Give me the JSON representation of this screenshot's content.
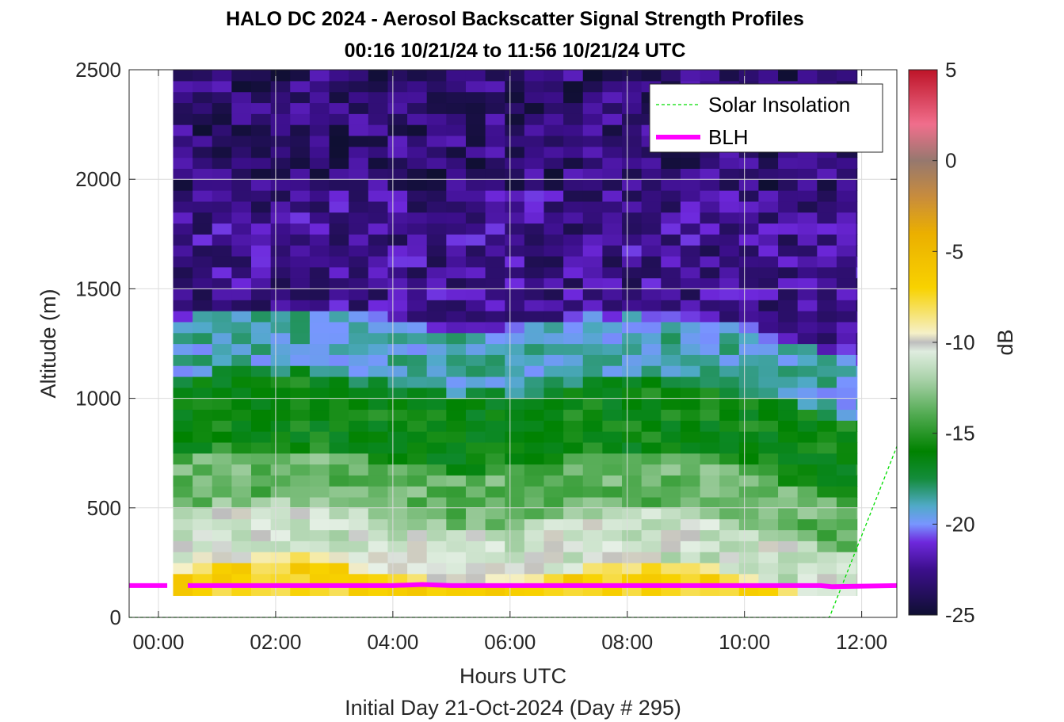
{
  "chart_data": {
    "type": "heatmap",
    "title": "HALO DC 2024 - Aerosol Backscatter Signal Strength Profiles",
    "subtitle": "00:16 10/21/24 to 11:56 10/21/24  UTC",
    "xlabel": "Hours UTC",
    "xlabel2": "Initial Day 21-Oct-2024 (Day # 295)",
    "ylabel": "Altitude (m)",
    "xlim": [
      -0.5,
      12.6
    ],
    "ylim": [
      0,
      2500
    ],
    "x_ticks": [
      0,
      2,
      4,
      6,
      8,
      10,
      12
    ],
    "x_tick_labels": [
      "00:00",
      "02:00",
      "04:00",
      "06:00",
      "08:00",
      "10:00",
      "12:00"
    ],
    "y_ticks": [
      0,
      500,
      1000,
      1500,
      2000,
      2500
    ],
    "y_tick_labels": [
      "0",
      "500",
      "1000",
      "1500",
      "2000",
      "2500"
    ],
    "grid": true,
    "colorbar": {
      "label": "dB",
      "range": [
        -25,
        5
      ],
      "ticks": [
        5,
        0,
        -5,
        -10,
        -15,
        -20,
        -25
      ],
      "tick_labels": [
        "5",
        "0",
        "-5",
        "-10",
        "-15",
        "-20",
        "-25"
      ]
    },
    "heatmap": {
      "x_start": 0.25,
      "x_end": 11.92,
      "time_step_hours": 0.333,
      "altitude_start": 100,
      "altitude_end": 2500,
      "altitude_step": 50,
      "layers": [
        {
          "from": 100,
          "to": 250,
          "db": -7
        },
        {
          "from": 250,
          "to": 500,
          "db": -11
        },
        {
          "from": 500,
          "to": 750,
          "db": -13.5
        },
        {
          "from": 750,
          "to": 1100,
          "db": -16
        },
        {
          "from": 1100,
          "to": 1400,
          "db": -19
        },
        {
          "from": 1400,
          "to": 2500,
          "db": -22.5
        }
      ]
    },
    "series": [
      {
        "name": "Solar Insolation",
        "style": "dashed",
        "color": "#00dd00",
        "x": [
          -0.5,
          11.45,
          12.6
        ],
        "y": [
          0,
          0,
          780
        ]
      },
      {
        "name": "BLH",
        "style": "solid",
        "color": "#ff00ff",
        "x": [
          -0.5,
          0.15,
          0.5,
          4.0,
          4.5,
          5.0,
          11.3,
          11.5,
          12.6
        ],
        "y": [
          145,
          145,
          145,
          145,
          150,
          145,
          145,
          140,
          145
        ],
        "gap": [
          0.15,
          0.5
        ]
      }
    ],
    "legend": {
      "placement": "top-right",
      "entries": [
        "Solar Insolation",
        "BLH"
      ]
    }
  }
}
